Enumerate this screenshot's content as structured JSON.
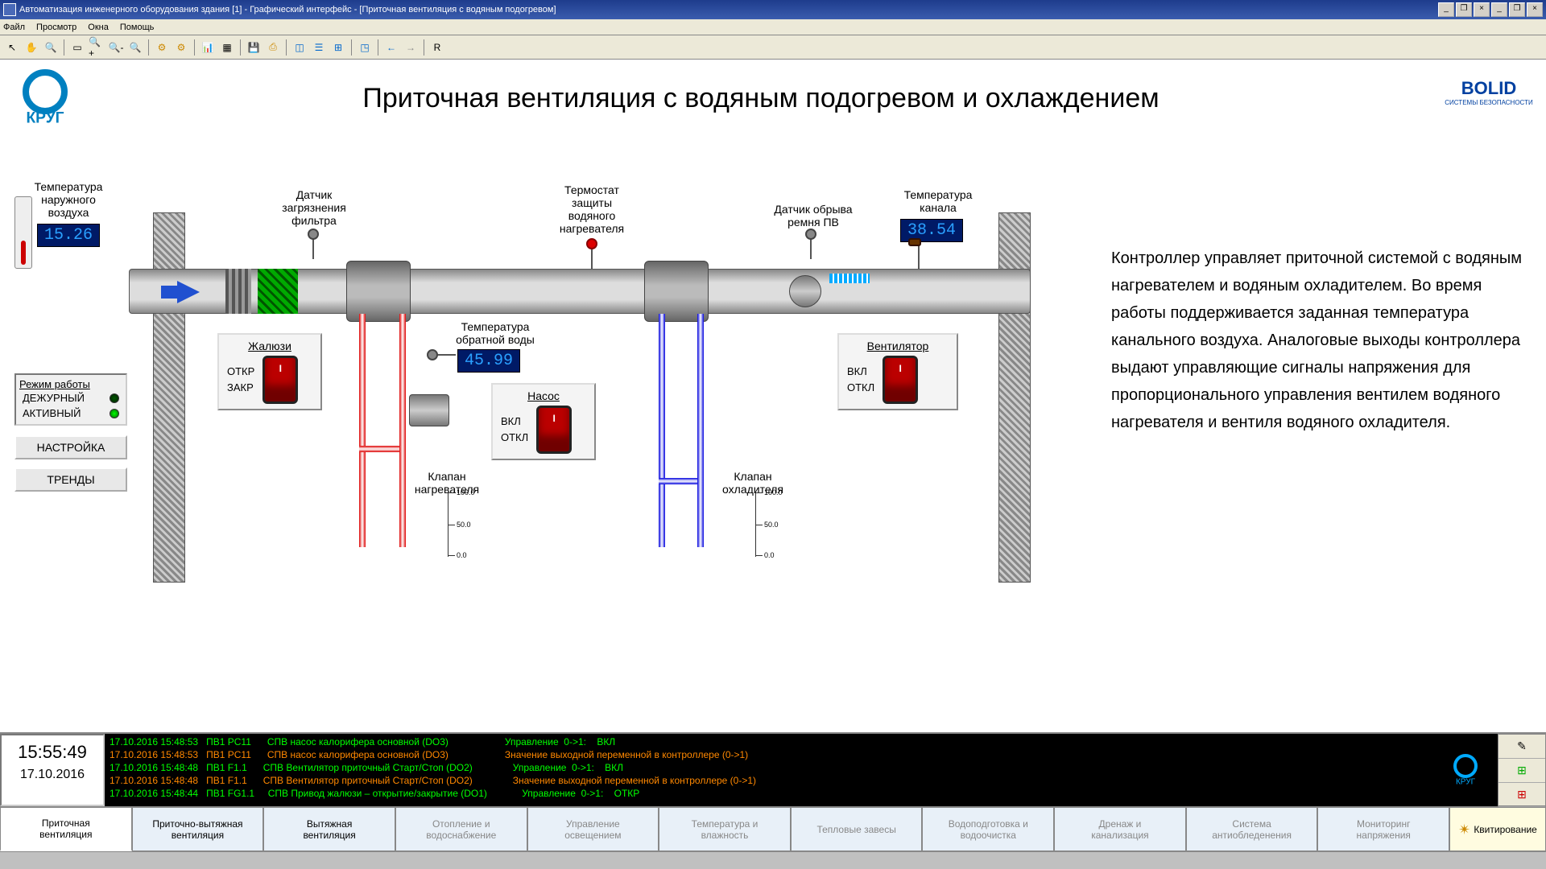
{
  "window": {
    "title": "Автоматизация инженерного оборудования здания [1] - Графический интерфейс - [Приточная вентиляция с водяным подогревом]"
  },
  "menu": {
    "file": "Файл",
    "view": "Просмотр",
    "windows": "Окна",
    "help": "Помощь"
  },
  "page_title": "Приточная вентиляция с водяным подогревом и охлаждением",
  "logo_left": "КРУГ",
  "logo_right": "BOLID",
  "logo_right_sub": "СИСТЕМЫ БЕЗОПАСНОСТИ",
  "temps": {
    "outdoor_label": "Температура\nнаружного\nвоздуха",
    "outdoor_value": "15.26",
    "channel_label": "Температура\nканала",
    "channel_value": "38.54",
    "return_label": "Температура\nобратной воды",
    "return_value": "45.99"
  },
  "sensors": {
    "filter": "Датчик\nзагрязнения\nфильтра",
    "thermostat": "Термостат\nзащиты\nводяного\nнагревателя",
    "belt": "Датчик обрыва\nремня ПВ"
  },
  "panels": {
    "louver": {
      "title": "Жалюзи",
      "on": "ОТКР",
      "off": "ЗАКР"
    },
    "pump": {
      "title": "Насос",
      "on": "ВКЛ",
      "off": "ОТКЛ"
    },
    "fan": {
      "title": "Вентилятор",
      "on": "ВКЛ",
      "off": "ОТКЛ"
    }
  },
  "valves": {
    "heater": "Клапан\nнагревателя",
    "cooler": "Клапан\nохладителя",
    "scale_max": "100.0",
    "scale_mid": "50.0",
    "scale_min": "0.0"
  },
  "mode": {
    "title": "Режим работы",
    "standby": "ДЕЖУРНЫЙ",
    "active": "АКТИВНЫЙ"
  },
  "buttons": {
    "settings": "НАСТРОЙКА",
    "trends": "ТРЕНДЫ"
  },
  "description": "Контроллер управляет приточной системой с водяным нагревателем и водяным охладителем. Во время работы поддерживается заданная температура канального воздуха. Аналоговые выходы контроллера выдают управляющие сигналы напряжения для пропорционального управления вентилем водяного нагревателя и вентиля водяного охладителя.",
  "clock": {
    "time": "15:55:49",
    "date": "17.10.2016"
  },
  "log": [
    {
      "ts": "17.10.2016 15:48:53",
      "tag": "ПВ1 PC11",
      "msg": "СПВ насос калорифера основной (DO3)",
      "right": "Управление  0->1:    ВКЛ",
      "color": "lg"
    },
    {
      "ts": "17.10.2016 15:48:53",
      "tag": "ПВ1 PC11",
      "msg": "СПВ насос калорифера основной (DO3)",
      "right": "Значение выходной переменной в контроллере (0->1)",
      "color": "lo"
    },
    {
      "ts": "17.10.2016 15:48:48",
      "tag": "ПВ1 F1.1",
      "msg": "СПВ Вентилятор приточный Старт/Стоп (DO2)",
      "right": "Управление  0->1:    ВКЛ",
      "color": "lg"
    },
    {
      "ts": "17.10.2016 15:48:48",
      "tag": "ПВ1 F1.1",
      "msg": "СПВ Вентилятор приточный Старт/Стоп (DO2)",
      "right": "Значение выходной переменной в контроллере (0->1)",
      "color": "lo"
    },
    {
      "ts": "17.10.2016 15:48:44",
      "tag": "ПВ1 FG1.1",
      "msg": "СПВ Привод жалюзи – открытие/закрытие (DO1)",
      "right": "Управление  0->1:    ОТКР",
      "color": "lg"
    }
  ],
  "tabs": {
    "t1": "Приточная\nвентиляция",
    "t2": "Приточно-вытяжная\nвентиляция",
    "t3": "Вытяжная\nвентиляция",
    "t4": "Отопление и\nводоснабжение",
    "t5": "Управление\nосвещением",
    "t6": "Температура и\nвлажность",
    "t7": "Тепловые завесы",
    "t8": "Водоподготовка и\nводоочистка",
    "t9": "Дренаж и\nканализация",
    "t10": "Система\nантиобледенения",
    "t11": "Мониторинг\nнапряжения",
    "ack": "Квитирование"
  }
}
